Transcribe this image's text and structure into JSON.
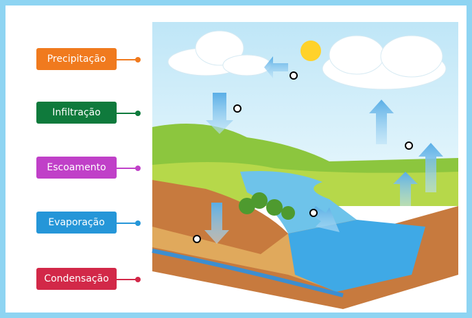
{
  "labels": [
    "Precipitação",
    "Infiltração",
    "Escoamento",
    "Evaporação",
    "Condensação"
  ]
}
